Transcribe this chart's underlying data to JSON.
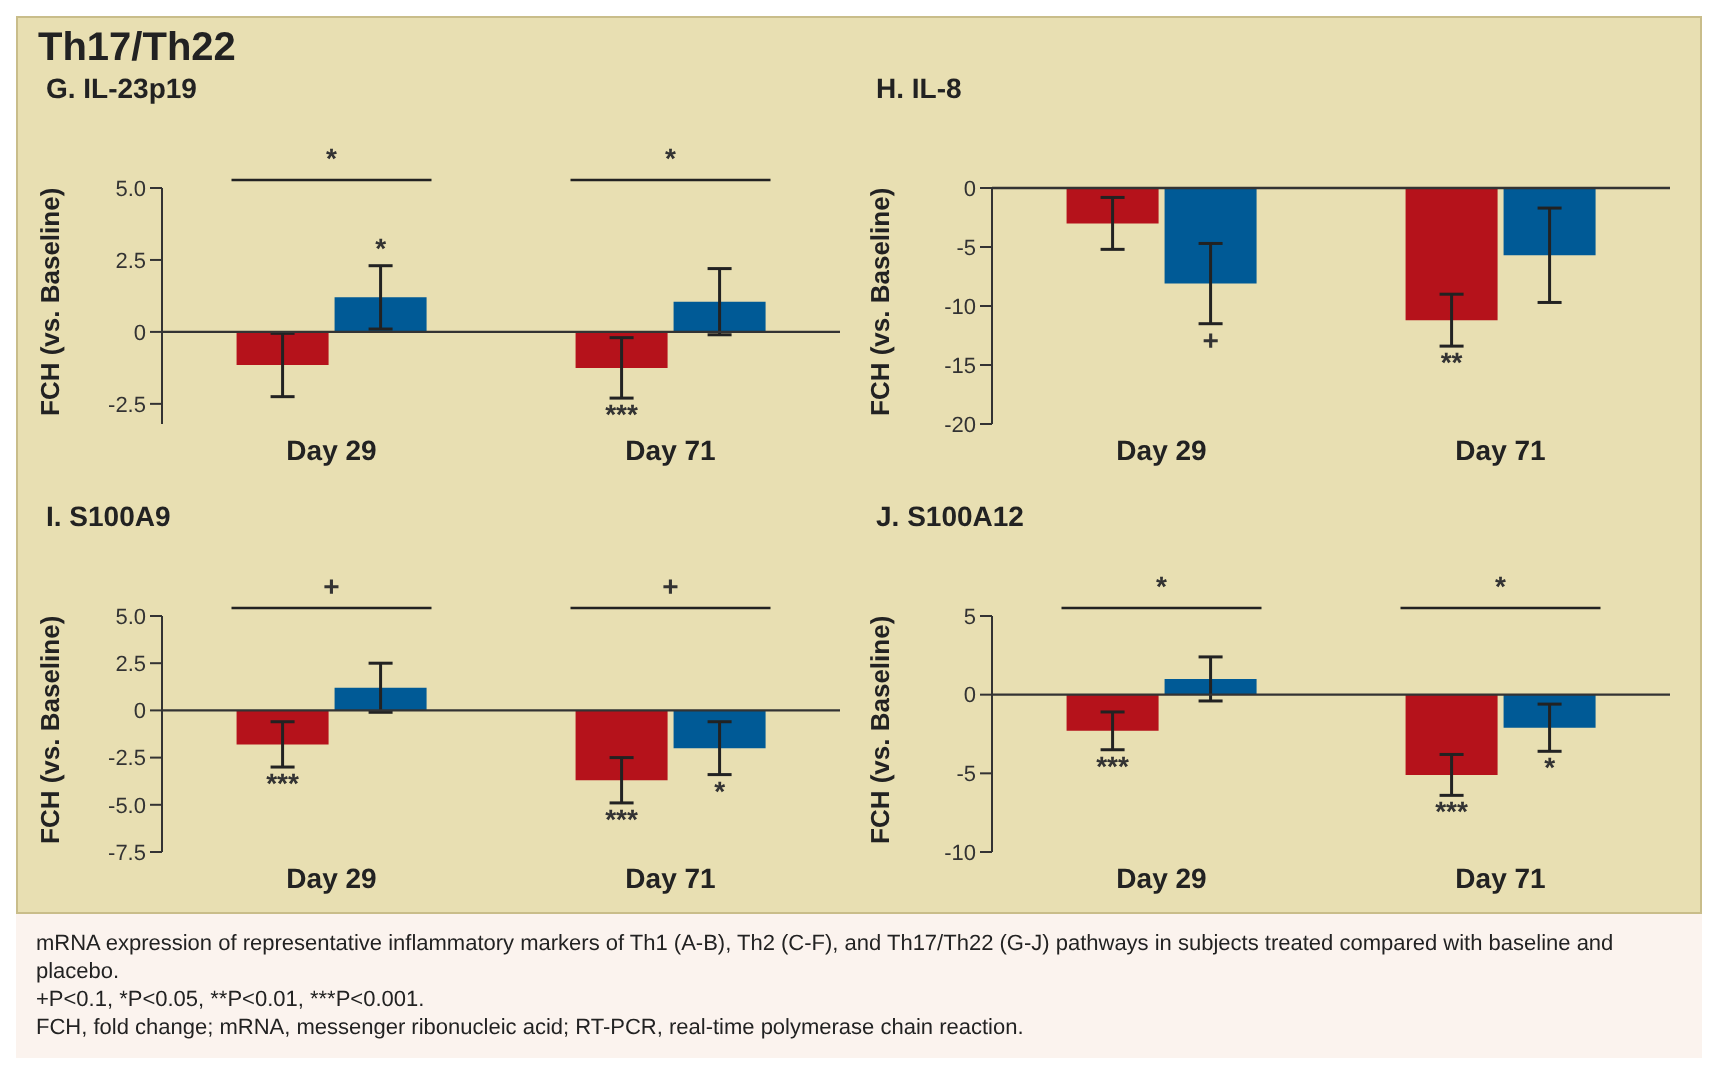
{
  "chart_data": [
    {
      "type": "bar",
      "title": "G. IL-23p19",
      "subtitle": "Th17/Th22",
      "ylabel": "FCH (vs. Baseline)",
      "categories": [
        "Day 29",
        "Day 71"
      ],
      "series": [
        {
          "color": "#b5121b",
          "values": [
            -1.15,
            -1.25
          ],
          "errors": [
            1.1,
            1.05
          ],
          "value_labels": [
            null,
            "***"
          ]
        },
        {
          "color": "#005a96",
          "values": [
            1.2,
            1.05
          ],
          "errors": [
            1.1,
            1.15
          ],
          "value_labels": [
            "*",
            null
          ]
        }
      ],
      "ylim": [
        -3.2,
        5
      ],
      "yticks": [
        {
          "value": 5,
          "label": "5.0"
        },
        {
          "value": 2.5,
          "label": "2.5"
        },
        0,
        {
          "value": -2.5,
          "label": "-2.5"
        }
      ],
      "ref_lines": [
        {
          "axis": "y",
          "value": 0,
          "color": "#333333"
        }
      ],
      "annotations": [
        "*",
        "*"
      ]
    },
    {
      "type": "bar",
      "title": "H. IL-8",
      "ylabel": "FCH (vs. Baseline)",
      "categories": [
        "Day 29",
        "Day 71"
      ],
      "series": [
        {
          "color": "#b5121b",
          "values": [
            -3,
            -11.2
          ],
          "errors": [
            2.2,
            2.2
          ],
          "value_labels": [
            null,
            "**"
          ]
        },
        {
          "color": "#005a96",
          "values": [
            -8.1,
            -5.7
          ],
          "errors": [
            3.4,
            4
          ],
          "value_labels": [
            "+",
            null
          ]
        }
      ],
      "ylim": [
        -20,
        0
      ],
      "yticks": [
        0,
        -5,
        -10,
        -15,
        -20
      ],
      "ref_lines": [
        {
          "axis": "y",
          "value": 0,
          "color": "#333333"
        }
      ]
    },
    {
      "type": "bar",
      "title": "I. S100A9",
      "ylabel": "FCH (vs. Baseline)",
      "categories": [
        "Day 29",
        "Day 71"
      ],
      "series": [
        {
          "color": "#b5121b",
          "values": [
            -1.8,
            -3.7
          ],
          "errors": [
            1.2,
            1.2
          ],
          "value_labels": [
            "***",
            "***"
          ]
        },
        {
          "color": "#005a96",
          "values": [
            1.2,
            -2
          ],
          "errors": [
            1.3,
            1.4
          ],
          "value_labels": [
            null,
            "*"
          ]
        }
      ],
      "ylim": [
        -7.5,
        5
      ],
      "yticks": [
        {
          "value": 5,
          "label": "5.0"
        },
        {
          "value": 2.5,
          "label": "2.5"
        },
        0,
        {
          "value": -2.5,
          "label": "-2.5"
        },
        {
          "value": -5,
          "label": "-5.0"
        },
        {
          "value": -7.5,
          "label": "-7.5"
        }
      ],
      "ref_lines": [
        {
          "axis": "y",
          "value": 0,
          "color": "#333333"
        }
      ],
      "annotations": [
        "+",
        "+"
      ]
    },
    {
      "type": "bar",
      "title": "J. S100A12",
      "ylabel": "FCH (vs. Baseline)",
      "categories": [
        "Day 29",
        "Day 71"
      ],
      "series": [
        {
          "color": "#b5121b",
          "values": [
            -2.3,
            -5.1
          ],
          "errors": [
            1.2,
            1.3
          ],
          "value_labels": [
            "***",
            "***"
          ]
        },
        {
          "color": "#005a96",
          "values": [
            1,
            -2.1
          ],
          "errors": [
            1.4,
            1.5
          ],
          "value_labels": [
            null,
            "*"
          ]
        }
      ],
      "ylim": [
        -10,
        5
      ],
      "yticks": [
        5,
        0,
        -5,
        -10
      ],
      "ref_lines": [
        {
          "axis": "y",
          "value": 0,
          "color": "#333333"
        }
      ],
      "annotations": [
        "*",
        "*",
        "mRNA expression of representative inflammatory markers of Th1 (A-B), Th2 (C-F), and Th17/Th22 (G-J) pathways in subjects treated compared with baseline and placebo.",
        "+P<0.1, *P<0.05, **P<0.01, ***P<0.001.",
        "FCH, fold change; mRNA, messenger ribonucleic acid; RT-PCR, real-time polymerase chain reaction."
      ]
    }
  ]
}
